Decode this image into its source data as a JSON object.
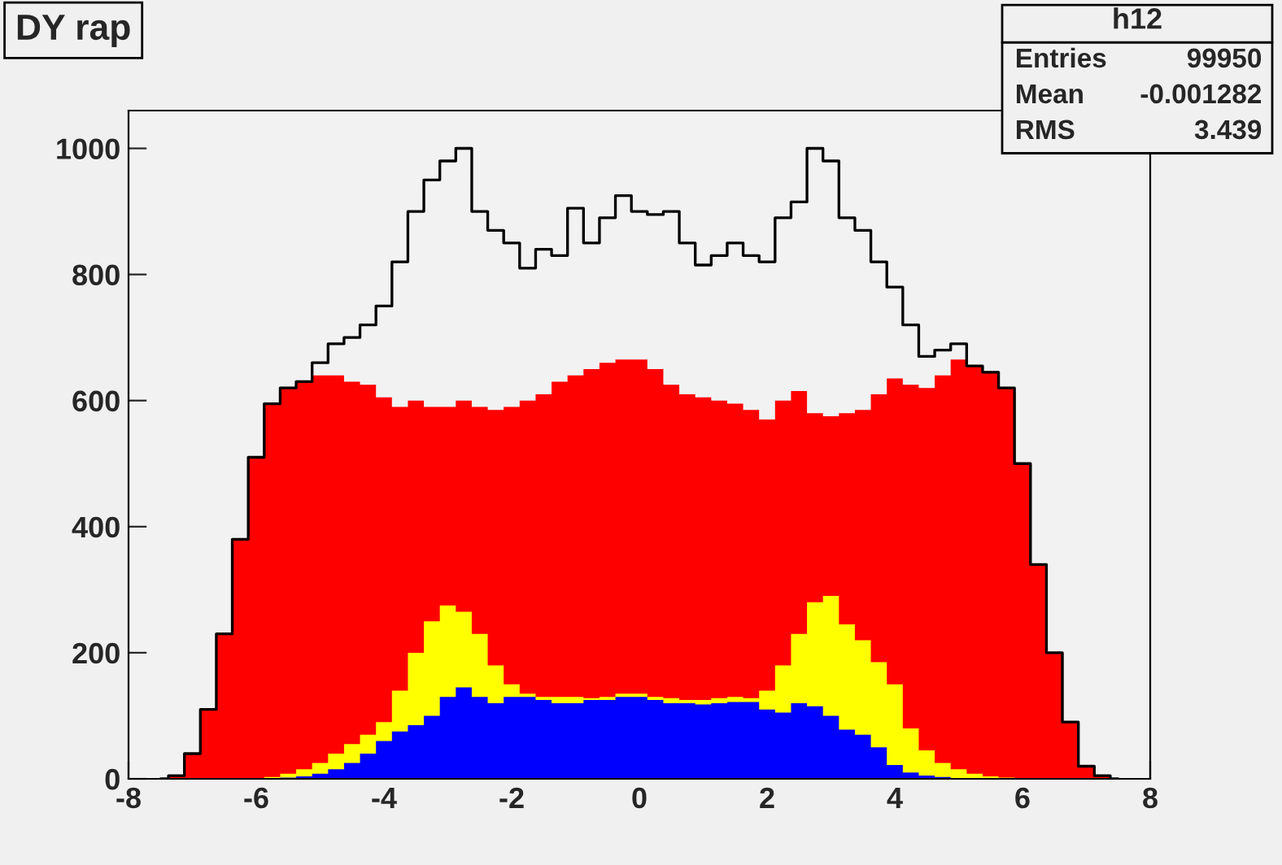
{
  "chart_data": {
    "type": "area",
    "title": "DY rap",
    "annotations": [
      "h12",
      "Entries",
      "99950",
      "Mean",
      "-0.001282",
      "RMS",
      "3.439"
    ],
    "x": [
      -7.5,
      -7.25,
      -7.0,
      -6.75,
      -6.5,
      -6.25,
      -6.0,
      -5.75,
      -5.5,
      -5.25,
      -5.0,
      -4.75,
      -4.5,
      -4.25,
      -4.0,
      -3.75,
      -3.5,
      -3.25,
      -3.0,
      -2.75,
      -2.5,
      -2.25,
      -2.0,
      -1.75,
      -1.5,
      -1.25,
      -1.0,
      -0.75,
      -0.5,
      -0.25,
      0,
      0.25,
      0.5,
      0.75,
      1.0,
      1.25,
      1.5,
      1.75,
      2.0,
      2.25,
      2.5,
      2.75,
      3.0,
      3.25,
      3.5,
      3.75,
      4.0,
      4.25,
      4.5,
      4.75,
      5.0,
      5.25,
      5.5,
      5.75,
      6.0,
      6.25,
      6.5,
      6.75,
      7.0,
      7.25,
      7.5
    ],
    "series": [
      {
        "type": "step",
        "color": "#000000",
        "values": [
          0,
          5,
          40,
          110,
          230,
          380,
          510,
          595,
          620,
          630,
          660,
          690,
          700,
          720,
          750,
          820,
          900,
          950,
          980,
          1000,
          900,
          870,
          850,
          810,
          840,
          830,
          905,
          850,
          890,
          925,
          900,
          895,
          900,
          850,
          815,
          830,
          850,
          830,
          820,
          890,
          915,
          1000,
          980,
          890,
          870,
          820,
          780,
          720,
          670,
          680,
          690,
          655,
          645,
          620,
          500,
          340,
          200,
          90,
          20,
          5,
          0
        ]
      },
      {
        "color": "#ff0000",
        "values": [
          0,
          5,
          40,
          110,
          230,
          380,
          510,
          595,
          620,
          630,
          640,
          640,
          630,
          625,
          605,
          590,
          600,
          590,
          590,
          600,
          590,
          585,
          590,
          600,
          610,
          630,
          640,
          650,
          660,
          665,
          665,
          650,
          625,
          610,
          605,
          600,
          595,
          585,
          570,
          600,
          615,
          580,
          575,
          580,
          585,
          610,
          635,
          625,
          620,
          640,
          665,
          655,
          645,
          620,
          500,
          340,
          200,
          90,
          20,
          5,
          0
        ]
      },
      {
        "color": "#ffff00",
        "values": [
          0,
          0,
          0,
          0,
          0,
          0,
          0,
          3,
          8,
          15,
          25,
          40,
          55,
          70,
          90,
          140,
          200,
          250,
          275,
          265,
          230,
          180,
          150,
          135,
          130,
          130,
          130,
          128,
          130,
          135,
          135,
          130,
          128,
          125,
          125,
          128,
          130,
          128,
          140,
          180,
          230,
          280,
          290,
          245,
          220,
          185,
          150,
          80,
          45,
          25,
          15,
          8,
          4,
          2,
          0,
          0,
          0,
          0,
          0,
          0,
          0
        ]
      },
      {
        "color": "#0000ff",
        "values": [
          0,
          0,
          0,
          0,
          0,
          0,
          0,
          0,
          2,
          4,
          8,
          15,
          25,
          40,
          60,
          75,
          85,
          100,
          130,
          145,
          130,
          120,
          130,
          130,
          125,
          120,
          120,
          125,
          125,
          130,
          130,
          125,
          120,
          120,
          118,
          120,
          122,
          122,
          110,
          105,
          120,
          115,
          100,
          78,
          70,
          50,
          22,
          10,
          5,
          3,
          1,
          0,
          0,
          0,
          0,
          0,
          0,
          0,
          0,
          0,
          0
        ]
      }
    ],
    "xlim": [
      -8,
      8
    ],
    "ylim": [
      0,
      1060
    ],
    "xticks": [
      -8,
      -6,
      -4,
      -2,
      0,
      2,
      4,
      6,
      8
    ],
    "yticks": [
      0,
      200,
      400,
      600,
      800,
      1000
    ],
    "grid": false,
    "legend": false
  }
}
